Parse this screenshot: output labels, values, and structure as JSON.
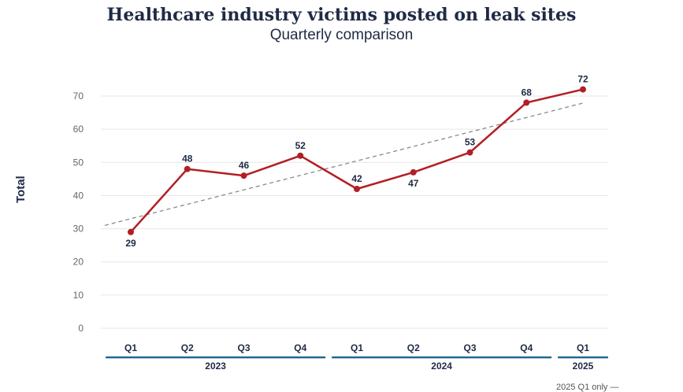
{
  "chart_data": {
    "type": "line",
    "title": "Healthcare industry victims posted on leak sites",
    "subtitle": "Quarterly comparison",
    "ylabel": "Total",
    "xlabel": "",
    "ylim": [
      0,
      70
    ],
    "yticks": [
      0,
      10,
      20,
      30,
      40,
      50,
      60,
      70
    ],
    "grid": true,
    "categories": [
      "Q1",
      "Q2",
      "Q3",
      "Q4",
      "Q1",
      "Q2",
      "Q3",
      "Q4",
      "Q1"
    ],
    "groups": [
      {
        "label": "2023",
        "count": 4
      },
      {
        "label": "2024",
        "count": 4
      },
      {
        "label": "2025",
        "count": 1
      }
    ],
    "series": [
      {
        "values": [
          29,
          48,
          46,
          52,
          42,
          47,
          53,
          68,
          72
        ],
        "color": "#b21f24"
      }
    ],
    "trendline": {
      "start": 31,
      "end": 68,
      "color": "#8a8a8a",
      "style": "dashed"
    },
    "label_below": [
      true,
      false,
      false,
      false,
      false,
      true,
      false,
      false,
      false
    ],
    "footnote": "2025 Q1 only —"
  }
}
